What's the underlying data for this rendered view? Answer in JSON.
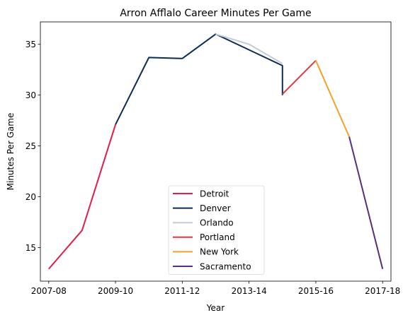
{
  "chart_data": {
    "type": "line",
    "title": "Arron Afflalo Career Minutes Per Game",
    "xlabel": "Year",
    "ylabel": "Minutes Per Game",
    "x_index_range": [
      -0.25,
      10.25
    ],
    "ylim": [
      11.7,
      37.2
    ],
    "x_ticks": [
      {
        "index": 0,
        "label": "2007-08"
      },
      {
        "index": 2,
        "label": "2009-10"
      },
      {
        "index": 4,
        "label": "2011-12"
      },
      {
        "index": 6,
        "label": "2013-14"
      },
      {
        "index": 8,
        "label": "2015-16"
      },
      {
        "index": 10,
        "label": "2017-18"
      }
    ],
    "y_ticks": [
      15,
      20,
      25,
      30,
      35
    ],
    "grid": false,
    "legend_position": "lower-center",
    "series": [
      {
        "name": "Detroit",
        "color": "#e31d47",
        "x": [
          "2007-08",
          "2008-09",
          "2009-10"
        ],
        "values": [
          12.9,
          16.7,
          27.1
        ]
      },
      {
        "name": "Denver",
        "color": "#0c2b57",
        "x": [
          "2009-10",
          "2010-11",
          "2011-12",
          "2012-13",
          "2014-15",
          "2014-15"
        ],
        "values": [
          27.1,
          33.7,
          33.6,
          36.0,
          32.9,
          30.0
        ]
      },
      {
        "name": "Orlando",
        "color": "#c3ccd5",
        "x": [
          "2012-13",
          "2013-14",
          "2014-15"
        ],
        "values": [
          36.0,
          35.0,
          33.1
        ]
      },
      {
        "name": "Portland",
        "color": "#e0393e",
        "x": [
          "2014-15",
          "2015-16"
        ],
        "values": [
          30.1,
          33.4
        ]
      },
      {
        "name": "New York",
        "color": "#f5a02a",
        "x": [
          "2015-16",
          "2016-17"
        ],
        "values": [
          33.4,
          25.9
        ]
      },
      {
        "name": "Sacramento",
        "color": "#5a2d81",
        "x": [
          "2016-17",
          "2017-18"
        ],
        "values": [
          25.9,
          12.9
        ]
      }
    ]
  }
}
